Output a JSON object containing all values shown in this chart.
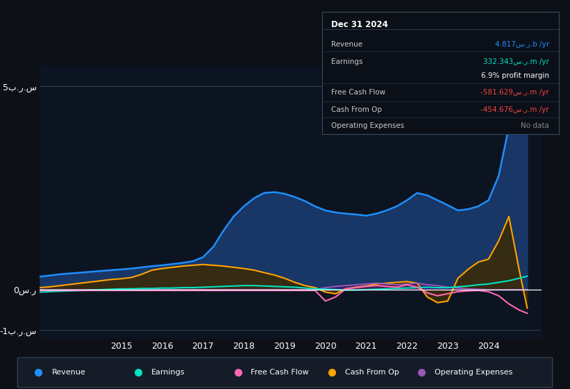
{
  "bg_color": "#0d1117",
  "plot_bg_color": "#0d1421",
  "ylim": [
    -1.2,
    5.5
  ],
  "xlim": [
    2013.0,
    2025.3
  ],
  "yticks": [
    -1.0,
    0.0,
    5.0
  ],
  "ytick_labels": [
    "-1ب.ر.س",
    "0س.ر",
    "5ب.ر.س"
  ],
  "xticks": [
    2015,
    2016,
    2017,
    2018,
    2019,
    2020,
    2021,
    2022,
    2023,
    2024
  ],
  "info_title": "Dec 31 2024",
  "info_rows": [
    {
      "label": "Revenue",
      "value": "4.817س.ر.b /yr",
      "vcolor": "#1e90ff"
    },
    {
      "label": "Earnings",
      "value": "332.343س.ر.m /yr",
      "vcolor": "#00e5c0"
    },
    {
      "label": "",
      "value": "6.9% profit margin",
      "vcolor": "#ffffff"
    },
    {
      "label": "Free Cash Flow",
      "value": "-581.629س.ر.m /yr",
      "vcolor": "#ff4444"
    },
    {
      "label": "Cash From Op",
      "value": "-454.676س.ر.m /yr",
      "vcolor": "#ff4444"
    },
    {
      "label": "Operating Expenses",
      "value": "No data",
      "vcolor": "#888888"
    }
  ],
  "series": {
    "revenue": {
      "line_color": "#1e90ff",
      "fill_color": "#1a3a6e",
      "x": [
        2013.0,
        2013.25,
        2013.5,
        2013.75,
        2014.0,
        2014.25,
        2014.5,
        2014.75,
        2015.0,
        2015.25,
        2015.5,
        2015.75,
        2016.0,
        2016.25,
        2016.5,
        2016.75,
        2017.0,
        2017.25,
        2017.5,
        2017.75,
        2018.0,
        2018.25,
        2018.5,
        2018.75,
        2019.0,
        2019.25,
        2019.5,
        2019.75,
        2020.0,
        2020.25,
        2020.5,
        2020.75,
        2021.0,
        2021.25,
        2021.5,
        2021.75,
        2022.0,
        2022.25,
        2022.5,
        2022.75,
        2023.0,
        2023.25,
        2023.5,
        2023.75,
        2024.0,
        2024.25,
        2024.5,
        2024.75,
        2024.95
      ],
      "y": [
        0.32,
        0.35,
        0.38,
        0.4,
        0.42,
        0.44,
        0.46,
        0.48,
        0.5,
        0.52,
        0.55,
        0.58,
        0.6,
        0.63,
        0.66,
        0.7,
        0.8,
        1.05,
        1.45,
        1.8,
        2.05,
        2.25,
        2.38,
        2.4,
        2.36,
        2.28,
        2.18,
        2.05,
        1.95,
        1.9,
        1.87,
        1.85,
        1.82,
        1.87,
        1.95,
        2.05,
        2.2,
        2.38,
        2.32,
        2.2,
        2.08,
        1.95,
        1.98,
        2.05,
        2.2,
        2.8,
        4.0,
        4.6,
        4.817
      ]
    },
    "earnings": {
      "line_color": "#00e5c0",
      "x": [
        2013.0,
        2013.25,
        2013.5,
        2013.75,
        2014.0,
        2014.25,
        2014.5,
        2014.75,
        2015.0,
        2015.25,
        2015.5,
        2015.75,
        2016.0,
        2016.25,
        2016.5,
        2016.75,
        2017.0,
        2017.25,
        2017.5,
        2017.75,
        2018.0,
        2018.25,
        2018.5,
        2018.75,
        2019.0,
        2019.25,
        2019.5,
        2019.75,
        2020.0,
        2020.25,
        2020.5,
        2020.75,
        2021.0,
        2021.25,
        2021.5,
        2021.75,
        2022.0,
        2022.25,
        2022.5,
        2022.75,
        2023.0,
        2023.25,
        2023.5,
        2023.75,
        2024.0,
        2024.25,
        2024.5,
        2024.75,
        2024.95
      ],
      "y": [
        -0.06,
        -0.05,
        -0.04,
        -0.03,
        -0.02,
        -0.01,
        0.0,
        0.01,
        0.02,
        0.02,
        0.03,
        0.03,
        0.04,
        0.04,
        0.05,
        0.05,
        0.06,
        0.07,
        0.08,
        0.09,
        0.1,
        0.1,
        0.09,
        0.08,
        0.07,
        0.06,
        0.04,
        0.02,
        0.01,
        0.0,
        -0.01,
        -0.01,
        0.0,
        0.01,
        0.02,
        0.03,
        0.04,
        0.05,
        0.06,
        0.05,
        0.05,
        0.07,
        0.09,
        0.12,
        0.14,
        0.18,
        0.22,
        0.28,
        0.332
      ]
    },
    "free_cash_flow": {
      "line_color": "#ff69b4",
      "x": [
        2013.0,
        2013.25,
        2013.5,
        2013.75,
        2014.0,
        2014.25,
        2014.5,
        2014.75,
        2015.0,
        2015.25,
        2015.5,
        2015.75,
        2016.0,
        2016.25,
        2016.5,
        2016.75,
        2017.0,
        2017.25,
        2017.5,
        2017.75,
        2018.0,
        2018.25,
        2018.5,
        2018.75,
        2019.0,
        2019.25,
        2019.5,
        2019.75,
        2020.0,
        2020.25,
        2020.5,
        2020.75,
        2021.0,
        2021.25,
        2021.5,
        2021.75,
        2022.0,
        2022.25,
        2022.5,
        2022.75,
        2023.0,
        2023.25,
        2023.5,
        2023.75,
        2024.0,
        2024.25,
        2024.5,
        2024.75,
        2024.95
      ],
      "y": [
        -0.02,
        -0.02,
        -0.02,
        -0.02,
        -0.02,
        -0.02,
        -0.02,
        -0.02,
        -0.02,
        -0.02,
        -0.02,
        -0.02,
        -0.02,
        -0.02,
        -0.02,
        -0.02,
        -0.02,
        -0.02,
        -0.02,
        -0.02,
        -0.02,
        -0.02,
        -0.02,
        -0.02,
        -0.02,
        -0.02,
        -0.02,
        -0.02,
        -0.28,
        -0.18,
        0.02,
        0.05,
        0.08,
        0.1,
        0.08,
        0.06,
        0.12,
        0.06,
        -0.08,
        -0.15,
        -0.1,
        -0.05,
        -0.03,
        -0.02,
        -0.05,
        -0.15,
        -0.35,
        -0.5,
        -0.582
      ]
    },
    "cash_from_op": {
      "line_color": "#ffa500",
      "fill_color": "#3a2a0a",
      "x": [
        2013.0,
        2013.25,
        2013.5,
        2013.75,
        2014.0,
        2014.25,
        2014.5,
        2014.75,
        2015.0,
        2015.25,
        2015.5,
        2015.75,
        2016.0,
        2016.25,
        2016.5,
        2016.75,
        2017.0,
        2017.25,
        2017.5,
        2017.75,
        2018.0,
        2018.25,
        2018.5,
        2018.75,
        2019.0,
        2019.25,
        2019.5,
        2019.75,
        2020.0,
        2020.25,
        2020.5,
        2020.75,
        2021.0,
        2021.25,
        2021.5,
        2021.75,
        2022.0,
        2022.25,
        2022.5,
        2022.75,
        2023.0,
        2023.25,
        2023.5,
        2023.75,
        2024.0,
        2024.25,
        2024.5,
        2024.75,
        2024.95
      ],
      "y": [
        0.05,
        0.07,
        0.1,
        0.13,
        0.16,
        0.19,
        0.22,
        0.25,
        0.27,
        0.3,
        0.38,
        0.48,
        0.52,
        0.55,
        0.58,
        0.6,
        0.62,
        0.6,
        0.58,
        0.55,
        0.52,
        0.48,
        0.42,
        0.36,
        0.28,
        0.18,
        0.1,
        0.05,
        -0.06,
        -0.1,
        0.02,
        0.06,
        0.09,
        0.14,
        0.16,
        0.18,
        0.2,
        0.16,
        -0.18,
        -0.32,
        -0.28,
        0.28,
        0.5,
        0.68,
        0.75,
        1.2,
        1.8,
        0.5,
        -0.455
      ]
    },
    "operating_expenses": {
      "line_color": "#9b59b6",
      "fill_color": "#4a1a7a",
      "x": [
        2013.0,
        2013.25,
        2013.5,
        2013.75,
        2014.0,
        2014.25,
        2014.5,
        2014.75,
        2015.0,
        2015.25,
        2015.5,
        2015.75,
        2016.0,
        2016.25,
        2016.5,
        2016.75,
        2017.0,
        2017.25,
        2017.5,
        2017.75,
        2018.0,
        2018.25,
        2018.5,
        2018.75,
        2019.0,
        2019.25,
        2019.5,
        2019.75,
        2020.0,
        2020.25,
        2020.5,
        2020.75,
        2021.0,
        2021.25,
        2021.5,
        2021.75,
        2022.0,
        2022.25,
        2022.5,
        2022.75,
        2023.0,
        2023.25,
        2023.5,
        2023.75,
        2024.0,
        2024.25,
        2024.5,
        2024.75,
        2024.95
      ],
      "y": [
        0.0,
        0.0,
        0.0,
        0.0,
        0.0,
        0.0,
        0.0,
        0.0,
        0.0,
        0.0,
        0.0,
        0.0,
        0.0,
        0.0,
        0.0,
        0.0,
        0.0,
        0.0,
        0.0,
        0.0,
        0.0,
        0.0,
        0.0,
        0.0,
        0.0,
        0.0,
        0.0,
        0.0,
        0.05,
        0.08,
        0.1,
        0.12,
        0.14,
        0.16,
        0.14,
        0.12,
        0.14,
        0.16,
        0.12,
        0.1,
        0.06,
        0.04,
        0.02,
        0.01,
        0.0,
        0.0,
        0.0,
        0.0,
        0.0
      ]
    }
  },
  "legend": [
    {
      "label": "Revenue",
      "color": "#1e90ff"
    },
    {
      "label": "Earnings",
      "color": "#00e5c0"
    },
    {
      "label": "Free Cash Flow",
      "color": "#ff69b4"
    },
    {
      "label": "Cash From Op",
      "color": "#ffa500"
    },
    {
      "label": "Operating Expenses",
      "color": "#9b59b6"
    }
  ]
}
